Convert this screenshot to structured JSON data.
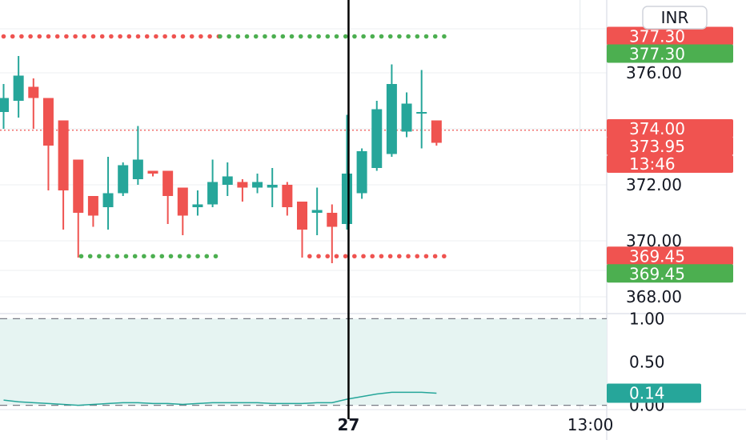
{
  "currency_badge": "INR",
  "colors": {
    "up": "#26a69a",
    "down": "#ef5350",
    "tag_red": "#f05350",
    "tag_green": "#4caf50",
    "grid": "#eceff2",
    "axis_text": "#131722",
    "osc_fill": "#e6f4f2"
  },
  "chart_data": [
    {
      "type": "candlestick",
      "title": "",
      "xlabel": "",
      "ylabel": "",
      "ylim": [
        367.4,
        378.6
      ],
      "y_ticks": [
        "376.00",
        "374.00",
        "372.00",
        "370.00",
        "368.00"
      ],
      "x_labels": [
        {
          "index": 23,
          "text": "27",
          "bold": true
        },
        {
          "index": 39.2,
          "text": "13:00",
          "bold": false
        }
      ],
      "cursor_index": 23,
      "candles": [
        {
          "o": 374.6,
          "h": 375.6,
          "l": 374.0,
          "c": 375.1
        },
        {
          "o": 375.0,
          "h": 376.6,
          "l": 374.4,
          "c": 375.9
        },
        {
          "o": 375.5,
          "h": 375.8,
          "l": 374.0,
          "c": 375.1
        },
        {
          "o": 375.1,
          "h": 375.1,
          "l": 371.8,
          "c": 373.4
        },
        {
          "o": 374.3,
          "h": 374.3,
          "l": 370.4,
          "c": 371.8
        },
        {
          "o": 372.9,
          "h": 372.9,
          "l": 369.4,
          "c": 371.0
        },
        {
          "o": 371.6,
          "h": 371.6,
          "l": 370.5,
          "c": 370.9
        },
        {
          "o": 371.2,
          "h": 373.0,
          "l": 370.4,
          "c": 371.7
        },
        {
          "o": 371.7,
          "h": 372.8,
          "l": 371.6,
          "c": 372.7
        },
        {
          "o": 372.2,
          "h": 374.1,
          "l": 372.0,
          "c": 372.9
        },
        {
          "o": 372.5,
          "h": 372.5,
          "l": 372.3,
          "c": 372.4
        },
        {
          "o": 372.5,
          "h": 372.5,
          "l": 370.6,
          "c": 371.6
        },
        {
          "o": 371.9,
          "h": 371.9,
          "l": 370.2,
          "c": 370.9
        },
        {
          "o": 371.2,
          "h": 371.8,
          "l": 370.9,
          "c": 371.3
        },
        {
          "o": 371.3,
          "h": 372.9,
          "l": 371.2,
          "c": 372.1
        },
        {
          "o": 372.0,
          "h": 372.8,
          "l": 371.6,
          "c": 372.3
        },
        {
          "o": 372.1,
          "h": 372.2,
          "l": 371.4,
          "c": 371.9
        },
        {
          "o": 371.9,
          "h": 372.4,
          "l": 371.7,
          "c": 372.1
        },
        {
          "o": 371.9,
          "h": 372.6,
          "l": 371.2,
          "c": 372.0
        },
        {
          "o": 372.0,
          "h": 372.1,
          "l": 370.9,
          "c": 371.2
        },
        {
          "o": 371.4,
          "h": 371.4,
          "l": 369.4,
          "c": 370.4
        },
        {
          "o": 371.0,
          "h": 371.9,
          "l": 370.2,
          "c": 371.1
        },
        {
          "o": 371.0,
          "h": 371.3,
          "l": 369.2,
          "c": 370.5
        },
        {
          "o": 370.6,
          "h": 374.5,
          "l": 370.4,
          "c": 372.4
        },
        {
          "o": 371.7,
          "h": 373.3,
          "l": 371.5,
          "c": 373.2
        },
        {
          "o": 372.6,
          "h": 375.0,
          "l": 372.5,
          "c": 374.7
        },
        {
          "o": 373.1,
          "h": 376.3,
          "l": 373.0,
          "c": 375.6
        },
        {
          "o": 373.9,
          "h": 375.3,
          "l": 373.7,
          "c": 374.9
        },
        {
          "o": 374.6,
          "h": 376.1,
          "l": 373.3,
          "c": 374.6
        },
        {
          "o": 374.3,
          "h": 374.3,
          "l": 373.4,
          "c": 373.5
        }
      ],
      "levels": [
        {
          "value": 377.3,
          "color": "#ef5350",
          "from": 0,
          "to": 14.5
        },
        {
          "value": 377.3,
          "color": "#4caf50",
          "from": 14.5,
          "to": 29.8
        },
        {
          "value": 369.45,
          "color": "#4caf50",
          "from": 5.2,
          "to": 14.5
        },
        {
          "value": 369.45,
          "color": "#ef5350",
          "from": 20.5,
          "to": 29.8
        }
      ],
      "current_price_line": 373.95,
      "price_tags": [
        {
          "value": 377.3,
          "text": "377.30",
          "color": "#f05350"
        },
        {
          "value": 377.3,
          "text": "377.30",
          "color": "#4caf50"
        },
        {
          "value": 374.0,
          "text": "374.00",
          "color": "#f05350"
        },
        {
          "value": 373.95,
          "text": "373.95",
          "color": "#f05350"
        },
        {
          "value": 369.45,
          "text": "369.45",
          "color": "#f05350"
        },
        {
          "value": 369.45,
          "text": "369.45",
          "color": "#4caf50"
        }
      ],
      "countdown": "13:46"
    },
    {
      "type": "line",
      "title": "",
      "ylim": [
        -0.05,
        1.05
      ],
      "y_ticks": [
        "1.00",
        "0.50",
        "0.00"
      ],
      "band": [
        0,
        1
      ],
      "series": [
        {
          "color": "#26a69a",
          "values": [
            0.06,
            0.04,
            0.03,
            0.02,
            0.01,
            0.0,
            0.01,
            0.02,
            0.03,
            0.03,
            0.02,
            0.02,
            0.01,
            0.02,
            0.03,
            0.03,
            0.03,
            0.03,
            0.02,
            0.02,
            0.02,
            0.03,
            0.03,
            0.07,
            0.1,
            0.13,
            0.15,
            0.15,
            0.15,
            0.14
          ]
        }
      ],
      "last_value_tag": {
        "text": "0.14",
        "color": "#26a69a"
      }
    }
  ]
}
